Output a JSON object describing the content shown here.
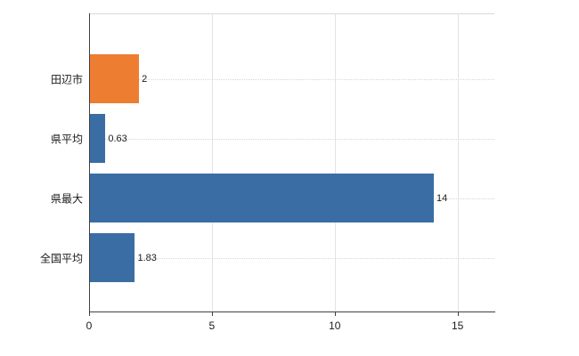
{
  "chart_data": {
    "type": "bar",
    "orientation": "horizontal",
    "title": "",
    "xlabel": "",
    "ylabel": "",
    "categories": [
      "田辺市",
      "県平均",
      "県最大",
      "全国平均"
    ],
    "values": [
      2,
      0.63,
      14,
      1.83
    ],
    "value_labels": [
      "2",
      "0.63",
      "14",
      "1.83"
    ],
    "bar_colors": [
      "#ed7d31",
      "#3a6da4",
      "#3a6da4",
      "#3a6da4"
    ],
    "xlim": [
      0,
      16.5
    ],
    "x_ticks": [
      0,
      5,
      10,
      15
    ],
    "grid": true,
    "legend": "none",
    "colors": {
      "highlight_bar": "#ed7d31",
      "default_bar": "#3a6da4",
      "axis": "#404040",
      "gridline": "#e3e3e3",
      "background": "#ffffff"
    }
  }
}
